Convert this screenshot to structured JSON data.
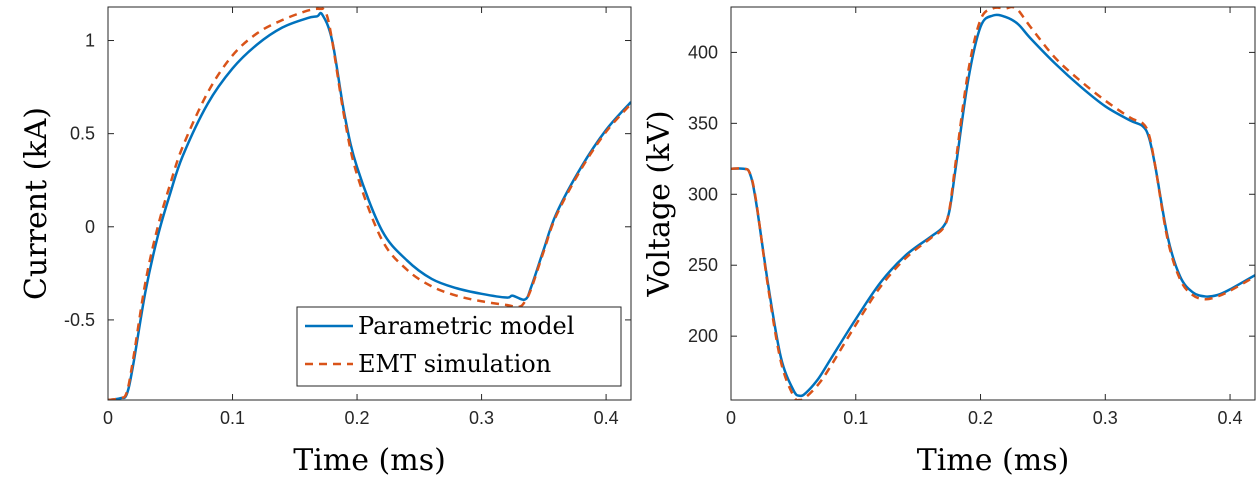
{
  "colors": {
    "parametric": "#0072BD",
    "emt": "#D95319",
    "axis": "#262626"
  },
  "legend": {
    "entries": [
      {
        "label": "Parametric model",
        "style": "solid"
      },
      {
        "label": "EMT simulation",
        "style": "dashed"
      }
    ],
    "placement": "bottom-right of left panel"
  },
  "chart_data": [
    {
      "type": "line",
      "xlabel": "Time (ms)",
      "ylabel": "Current (kA)",
      "xlim": [
        0,
        0.42
      ],
      "ylim": [
        -0.93,
        1.18
      ],
      "xticks": [
        0,
        0.1,
        0.2,
        0.3,
        0.4
      ],
      "xtick_labels": [
        "0",
        "0.1",
        "0.2",
        "0.3",
        "0.4"
      ],
      "yticks": [
        -0.5,
        0,
        0.5,
        1
      ],
      "ytick_labels": [
        "-0.5",
        "0",
        "0.5",
        "1"
      ],
      "grid": false,
      "series": [
        {
          "name": "Parametric model",
          "x": [
            0,
            0.01,
            0.015,
            0.02,
            0.03,
            0.04,
            0.05,
            0.06,
            0.08,
            0.1,
            0.12,
            0.14,
            0.16,
            0.168,
            0.172,
            0.18,
            0.19,
            0.2,
            0.22,
            0.24,
            0.26,
            0.28,
            0.3,
            0.32,
            0.325,
            0.335,
            0.34,
            0.35,
            0.36,
            0.38,
            0.4,
            0.42
          ],
          "y": [
            -0.93,
            -0.92,
            -0.9,
            -0.75,
            -0.35,
            -0.05,
            0.18,
            0.38,
            0.66,
            0.85,
            0.98,
            1.07,
            1.12,
            1.13,
            1.14,
            1.0,
            0.6,
            0.32,
            -0.02,
            -0.18,
            -0.28,
            -0.33,
            -0.36,
            -0.38,
            -0.37,
            -0.39,
            -0.32,
            -0.12,
            0.07,
            0.32,
            0.52,
            0.67
          ]
        },
        {
          "name": "EMT simulation",
          "x": [
            0,
            0.01,
            0.015,
            0.02,
            0.03,
            0.04,
            0.05,
            0.06,
            0.08,
            0.1,
            0.12,
            0.14,
            0.16,
            0.17,
            0.175,
            0.18,
            0.19,
            0.2,
            0.22,
            0.24,
            0.26,
            0.28,
            0.3,
            0.32,
            0.33,
            0.335,
            0.34,
            0.35,
            0.36,
            0.38,
            0.4,
            0.42
          ],
          "y": [
            -0.93,
            -0.92,
            -0.89,
            -0.72,
            -0.3,
            0.0,
            0.23,
            0.43,
            0.72,
            0.92,
            1.04,
            1.11,
            1.16,
            1.17,
            1.15,
            1.0,
            0.58,
            0.28,
            -0.07,
            -0.23,
            -0.32,
            -0.37,
            -0.4,
            -0.42,
            -0.43,
            -0.4,
            -0.33,
            -0.13,
            0.06,
            0.31,
            0.51,
            0.66
          ]
        }
      ]
    },
    {
      "type": "line",
      "xlabel": "Time (ms)",
      "ylabel": "Voltage (kV)",
      "xlim": [
        0,
        0.42
      ],
      "ylim": [
        155,
        432
      ],
      "xticks": [
        0,
        0.1,
        0.2,
        0.3,
        0.4
      ],
      "xtick_labels": [
        "0",
        "0.1",
        "0.2",
        "0.3",
        "0.4"
      ],
      "yticks": [
        200,
        250,
        300,
        350,
        400
      ],
      "ytick_labels": [
        "200",
        "250",
        "300",
        "350",
        "400"
      ],
      "grid": false,
      "series": [
        {
          "name": "Parametric model",
          "x": [
            0,
            0.01,
            0.015,
            0.02,
            0.03,
            0.04,
            0.05,
            0.055,
            0.06,
            0.07,
            0.08,
            0.1,
            0.12,
            0.14,
            0.16,
            0.17,
            0.175,
            0.18,
            0.19,
            0.2,
            0.21,
            0.22,
            0.23,
            0.24,
            0.26,
            0.28,
            0.3,
            0.32,
            0.33,
            0.335,
            0.34,
            0.35,
            0.36,
            0.37,
            0.38,
            0.39,
            0.4,
            0.42
          ],
          "y": [
            318,
            318,
            315,
            295,
            235,
            185,
            162,
            158,
            160,
            170,
            184,
            212,
            238,
            257,
            270,
            277,
            288,
            318,
            380,
            418,
            426,
            425,
            420,
            410,
            392,
            376,
            362,
            352,
            348,
            340,
            320,
            270,
            242,
            231,
            228,
            229,
            233,
            243
          ]
        },
        {
          "name": "EMT simulation",
          "x": [
            0,
            0.01,
            0.015,
            0.02,
            0.03,
            0.04,
            0.05,
            0.055,
            0.06,
            0.07,
            0.08,
            0.1,
            0.12,
            0.14,
            0.16,
            0.17,
            0.175,
            0.18,
            0.19,
            0.2,
            0.21,
            0.22,
            0.225,
            0.23,
            0.24,
            0.26,
            0.28,
            0.3,
            0.32,
            0.33,
            0.335,
            0.34,
            0.35,
            0.36,
            0.37,
            0.38,
            0.39,
            0.4,
            0.42
          ],
          "y": [
            318,
            318,
            315,
            296,
            233,
            182,
            158,
            155,
            157,
            166,
            179,
            208,
            235,
            255,
            269,
            276,
            289,
            322,
            386,
            423,
            431,
            431,
            432,
            430,
            418,
            396,
            380,
            366,
            354,
            350,
            342,
            320,
            268,
            240,
            229,
            226,
            228,
            232,
            242
          ]
        }
      ]
    }
  ]
}
